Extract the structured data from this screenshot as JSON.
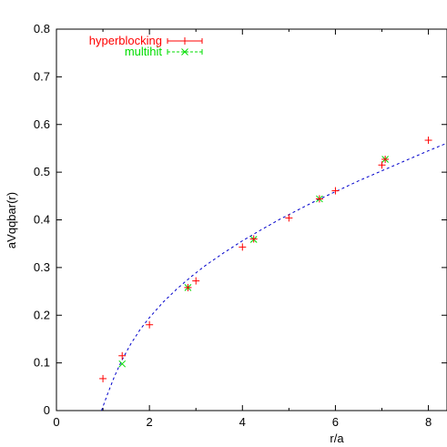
{
  "chart_data": {
    "type": "scatter",
    "title": "",
    "xlabel": "r/a",
    "ylabel": "aVqqbar(r)",
    "xlim": [
      0,
      8.4
    ],
    "ylim": [
      0,
      0.8
    ],
    "xticks": [
      "0",
      "2",
      "4",
      "6",
      "8"
    ],
    "yticks": [
      "0",
      "0.1",
      "0.2",
      "0.3",
      "0.4",
      "0.5",
      "0.6",
      "0.7",
      "0.8"
    ],
    "grid": false,
    "legend_position": "top-left",
    "series": [
      {
        "name": "hyperblocking",
        "color": "#ff0000",
        "marker": "plus",
        "error_bars": true,
        "x": [
          1.0,
          1.414,
          2.0,
          2.828,
          3.0,
          4.0,
          4.243,
          5.0,
          5.657,
          6.0,
          7.0,
          7.071,
          8.0
        ],
        "y": [
          0.067,
          0.115,
          0.18,
          0.258,
          0.272,
          0.343,
          0.36,
          0.404,
          0.444,
          0.461,
          0.515,
          0.527,
          0.567
        ]
      },
      {
        "name": "multihit",
        "color": "#00dd00",
        "marker": "cross",
        "error_bars": true,
        "x": [
          1.414,
          2.828,
          4.243,
          5.657,
          7.071
        ],
        "y": [
          0.098,
          0.258,
          0.359,
          0.444,
          0.527
        ]
      },
      {
        "name": "",
        "color": "#0000cc",
        "marker": "none",
        "line": "dashed",
        "x": [
          0.97,
          1.1,
          1.25,
          1.4,
          1.6,
          1.8,
          2.0,
          2.3,
          2.6,
          2.9,
          3.2,
          3.6,
          4.0,
          4.4,
          4.8,
          5.2,
          5.6,
          6.0,
          6.5,
          7.0,
          7.5,
          8.0,
          8.4
        ],
        "y": [
          0.0,
          0.035,
          0.072,
          0.104,
          0.14,
          0.17,
          0.195,
          0.228,
          0.256,
          0.281,
          0.304,
          0.331,
          0.356,
          0.379,
          0.401,
          0.421,
          0.441,
          0.459,
          0.482,
          0.503,
          0.524,
          0.545,
          0.561
        ]
      }
    ]
  }
}
